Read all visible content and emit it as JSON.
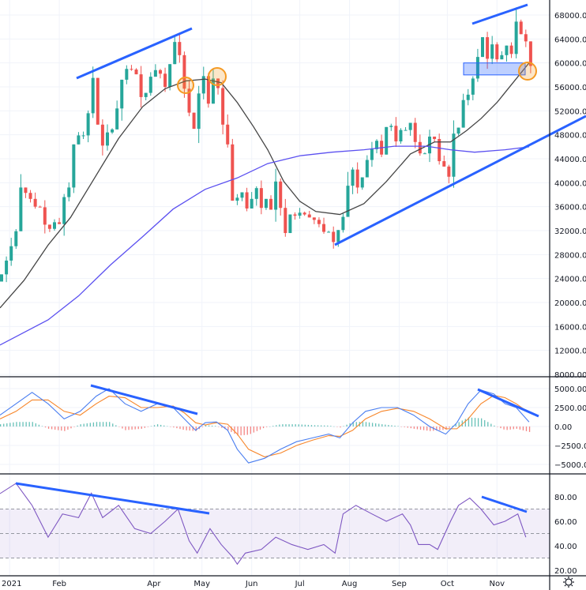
{
  "chart_data": {
    "type": "candlestick",
    "colors": {
      "up": "#26a69a",
      "down": "#ef5350",
      "ma_fast": "#444444",
      "ma_slow": "#5b50f0",
      "macd": "#4a7ef0",
      "signal": "#f7862a",
      "rsi": "#7e57c2",
      "annotation": "#2962ff",
      "highlight": "#f59a23"
    },
    "x_axis": {
      "labels": [
        {
          "text": "2021",
          "day": 6
        },
        {
          "text": "Feb",
          "day": 37
        },
        {
          "text": "Apr",
          "day": 96
        },
        {
          "text": "May",
          "day": 126
        },
        {
          "text": "Jun",
          "day": 157
        },
        {
          "text": "Jul",
          "day": 187
        },
        {
          "text": "Aug",
          "day": 218
        },
        {
          "text": "Sep",
          "day": 249
        },
        {
          "text": "Oct",
          "day": 279
        },
        {
          "text": "Nov",
          "day": 310
        }
      ]
    },
    "price": {
      "unit": "thousands USD",
      "ylim": [
        8,
        70
      ],
      "tick_labels": [
        "8000.00",
        "12000.00",
        "16000.00",
        "20000.00",
        "24000.00",
        "28000.00",
        "32000.00",
        "36000.00",
        "40000.00",
        "44000.00",
        "48000.00",
        "52000.00",
        "56000.00",
        "60000.00",
        "64000.00",
        "68000.00"
      ],
      "ticks": [
        8,
        12,
        16,
        20,
        24,
        28,
        32,
        36,
        40,
        44,
        48,
        52,
        56,
        60,
        64,
        68
      ],
      "step_days": 3,
      "closes": [
        24.7,
        27.0,
        29.4,
        31.9,
        39.2,
        38.3,
        37.3,
        36.0,
        35.9,
        33.0,
        32.3,
        33.4,
        33.1,
        37.6,
        39.2,
        46.4,
        47.9,
        47.9,
        51.6,
        57.5,
        49.7,
        46.2,
        48.4,
        48.9,
        52.4,
        57.2,
        59.0,
        58.9,
        58.1,
        54.3,
        55.0,
        57.7,
        58.8,
        58.2,
        56.0,
        59.8,
        63.5,
        61.3,
        55.7,
        51.7,
        49.0,
        54.9,
        57.8,
        53.2,
        57.4,
        55.8,
        49.7,
        46.4,
        37.0,
        37.5,
        38.4,
        35.7,
        37.3,
        39.1,
        35.8,
        37.3,
        35.5,
        40.2,
        35.8,
        31.6,
        34.7,
        34.5,
        35.0,
        34.7,
        34.2,
        33.8,
        33.1,
        31.8,
        31.8,
        30.1,
        32.1,
        34.3,
        39.5,
        42.2,
        39.2,
        40.9,
        43.8,
        45.6,
        47.0,
        44.7,
        49.3,
        49.5,
        46.9,
        48.8,
        48.8,
        50.0,
        46.8,
        44.9,
        44.9,
        47.7,
        47.3,
        43.6,
        42.7,
        41.0,
        48.2,
        49.2,
        53.8,
        54.7,
        57.4,
        61.0,
        64.3,
        60.7,
        63.1,
        60.6,
        61.3,
        62.9,
        61.5,
        66.9,
        64.8,
        63.6,
        59.5
      ],
      "ma_fast": [
        [
          0,
          19.1
        ],
        [
          15,
          23.7
        ],
        [
          30,
          29.6
        ],
        [
          44,
          34.2
        ],
        [
          59,
          40.8
        ],
        [
          74,
          47.4
        ],
        [
          89,
          52.7
        ],
        [
          103,
          55.7
        ],
        [
          116,
          57.0
        ],
        [
          128,
          57.3
        ],
        [
          138,
          56.7
        ],
        [
          148,
          53.4
        ],
        [
          158,
          49.4
        ],
        [
          167,
          45.5
        ],
        [
          177,
          40.2
        ],
        [
          187,
          36.9
        ],
        [
          197,
          35.2
        ],
        [
          212,
          34.7
        ],
        [
          227,
          36.5
        ],
        [
          241,
          40.2
        ],
        [
          256,
          44.8
        ],
        [
          271,
          46.8
        ],
        [
          281,
          46.8
        ],
        [
          291,
          48.7
        ],
        [
          300,
          50.7
        ],
        [
          310,
          53.4
        ],
        [
          320,
          56.7
        ],
        [
          330,
          60.0
        ]
      ],
      "ma_slow": [
        [
          0,
          12.9
        ],
        [
          30,
          17.1
        ],
        [
          49,
          21.1
        ],
        [
          69,
          26.3
        ],
        [
          89,
          31.0
        ],
        [
          108,
          35.6
        ],
        [
          128,
          38.9
        ],
        [
          148,
          40.8
        ],
        [
          167,
          43.2
        ],
        [
          187,
          44.5
        ],
        [
          207,
          45.1
        ],
        [
          227,
          45.5
        ],
        [
          246,
          46.1
        ],
        [
          266,
          46.1
        ],
        [
          281,
          45.5
        ],
        [
          296,
          45.1
        ],
        [
          315,
          45.5
        ],
        [
          330,
          46.0
        ]
      ],
      "support_zone": [
        58,
        60
      ]
    },
    "macd": {
      "unit": "USD",
      "ylim": [
        -5500,
        5500
      ],
      "tick_labels": [
        "5000.00",
        "2500.00",
        "0.00",
        "−2500.00",
        "−5000.00"
      ],
      "ticks": [
        5000,
        2500,
        0,
        -2500,
        -5000
      ],
      "points": [
        [
          0,
          1.5,
          1.0
        ],
        [
          10,
          3.0,
          2.0
        ],
        [
          20,
          4.5,
          3.5
        ],
        [
          30,
          3.0,
          3.5
        ],
        [
          40,
          1.0,
          2.0
        ],
        [
          50,
          2.0,
          1.5
        ],
        [
          60,
          4.0,
          3.0
        ],
        [
          68,
          5.0,
          4.0
        ],
        [
          78,
          3.0,
          3.8
        ],
        [
          88,
          2.0,
          2.5
        ],
        [
          98,
          3.0,
          2.5
        ],
        [
          108,
          2.5,
          2.7
        ],
        [
          115,
          1.0,
          1.8
        ],
        [
          122,
          -0.5,
          0.5
        ],
        [
          128,
          0.5,
          0.2
        ],
        [
          135,
          0.6,
          0.5
        ],
        [
          142,
          -0.5,
          0.3
        ],
        [
          148,
          -3.0,
          -1.0
        ],
        [
          155,
          -4.8,
          -3.0
        ],
        [
          165,
          -4.2,
          -4.0
        ],
        [
          175,
          -3.0,
          -3.5
        ],
        [
          185,
          -2.0,
          -2.5
        ],
        [
          195,
          -1.5,
          -1.8
        ],
        [
          205,
          -1.0,
          -1.2
        ],
        [
          212,
          -1.5,
          -1.3
        ],
        [
          220,
          0.5,
          -0.5
        ],
        [
          228,
          2.0,
          1.0
        ],
        [
          238,
          2.5,
          2.0
        ],
        [
          248,
          2.5,
          2.4
        ],
        [
          258,
          1.5,
          2.0
        ],
        [
          268,
          0.0,
          1.0
        ],
        [
          278,
          -1.0,
          -0.3
        ],
        [
          285,
          0.5,
          -0.3
        ],
        [
          292,
          3.0,
          1.0
        ],
        [
          300,
          4.8,
          3.0
        ],
        [
          308,
          4.3,
          4.1
        ],
        [
          315,
          3.0,
          3.8
        ],
        [
          322,
          2.5,
          3.0
        ],
        [
          330,
          0.6,
          1.8
        ]
      ],
      "points_format": [
        "day",
        "macd_thousands",
        "signal_thousands"
      ]
    },
    "rsi": {
      "ylim": [
        15,
        95
      ],
      "tick_labels": [
        "80.00",
        "60.00",
        "40.00",
        "20.00"
      ],
      "ticks": [
        80,
        60,
        40,
        20
      ],
      "band": [
        30,
        70
      ],
      "mid": 50,
      "points": [
        [
          0,
          82.6
        ],
        [
          10,
          91
        ],
        [
          20,
          73
        ],
        [
          30,
          47
        ],
        [
          39,
          66
        ],
        [
          49,
          63
        ],
        [
          57,
          83
        ],
        [
          64,
          63
        ],
        [
          74,
          73
        ],
        [
          84,
          54
        ],
        [
          94,
          50
        ],
        [
          103,
          60
        ],
        [
          111,
          70
        ],
        [
          118,
          44
        ],
        [
          123,
          34
        ],
        [
          131,
          54
        ],
        [
          138,
          41
        ],
        [
          145,
          31
        ],
        [
          148,
          25
        ],
        [
          153,
          34
        ],
        [
          163,
          37
        ],
        [
          172,
          47
        ],
        [
          182,
          41
        ],
        [
          192,
          37
        ],
        [
          202,
          41
        ],
        [
          209,
          34
        ],
        [
          214,
          66
        ],
        [
          222,
          73
        ],
        [
          232,
          66
        ],
        [
          241,
          60
        ],
        [
          251,
          66
        ],
        [
          256,
          57
        ],
        [
          261,
          41
        ],
        [
          268,
          41
        ],
        [
          273,
          37
        ],
        [
          281,
          60
        ],
        [
          286,
          73
        ],
        [
          293,
          79
        ],
        [
          300,
          70
        ],
        [
          308,
          57
        ],
        [
          315,
          60
        ],
        [
          323,
          66
        ],
        [
          328,
          47
        ]
      ]
    }
  },
  "settings_icon": "gear-icon"
}
